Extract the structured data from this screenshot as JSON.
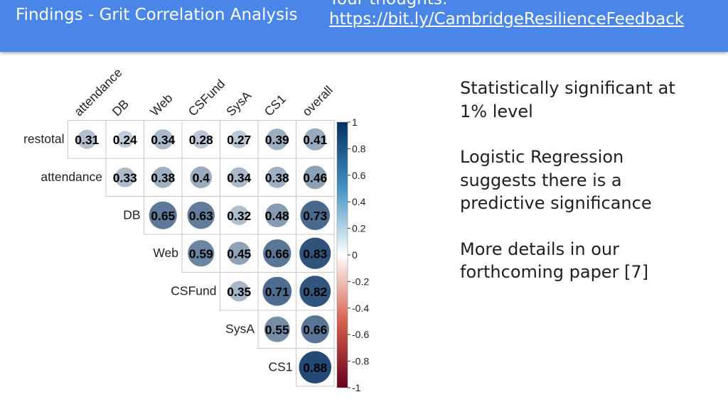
{
  "header": {
    "title": "Findings - Grit Correlation Analysis",
    "thoughts_label": "Your thoughts:",
    "feedback_link": "https://bit.ly/CambridgeResilienceFeedback"
  },
  "notes": [
    "Statistically significant at 1% level",
    "Logistic Regression suggests there is a predictive significance",
    "More details in our forthcoming paper [7]"
  ],
  "chart_data": {
    "type": "heatmap",
    "row_labels": [
      "restotal",
      "attendance",
      "DB",
      "Web",
      "CSFund",
      "SysA",
      "CS1"
    ],
    "col_labels": [
      "attendance",
      "DB",
      "Web",
      "CSFund",
      "SysA",
      "CS1",
      "overall"
    ],
    "values": [
      [
        0.31,
        0.24,
        0.34,
        0.28,
        0.27,
        0.39,
        0.41
      ],
      [
        null,
        0.33,
        0.38,
        0.4,
        0.34,
        0.38,
        0.46
      ],
      [
        null,
        null,
        0.65,
        0.63,
        0.32,
        0.48,
        0.73
      ],
      [
        null,
        null,
        null,
        0.59,
        0.45,
        0.66,
        0.83
      ],
      [
        null,
        null,
        null,
        null,
        0.35,
        0.71,
        0.82
      ],
      [
        null,
        null,
        null,
        null,
        null,
        0.55,
        0.66
      ],
      [
        null,
        null,
        null,
        null,
        null,
        null,
        0.88
      ]
    ],
    "value_labels": [
      [
        "0.31",
        "0.24",
        "0.34",
        "0.28",
        "0.27",
        "0.39",
        "0.41"
      ],
      [
        "",
        "0.33",
        "0.38",
        "0.4",
        "0.34",
        "0.38",
        "0.46"
      ],
      [
        "",
        "",
        "0.65",
        "0.63",
        "0.32",
        "0.48",
        "0.73"
      ],
      [
        "",
        "",
        "",
        "0.59",
        "0.45",
        "0.66",
        "0.83"
      ],
      [
        "",
        "",
        "",
        "",
        "0.35",
        "0.71",
        "0.82"
      ],
      [
        "",
        "",
        "",
        "",
        "",
        "0.55",
        "0.66"
      ],
      [
        "",
        "",
        "",
        "",
        "",
        "",
        "0.88"
      ]
    ],
    "colorbar": {
      "range": [
        -1,
        1
      ],
      "ticks": [
        1,
        0.8,
        0.6,
        0.4,
        0.2,
        0,
        -0.2,
        -0.4,
        -0.6,
        -0.8,
        -1
      ],
      "tick_labels": [
        "1",
        "0.8",
        "0.6",
        "0.4",
        "0.2",
        "0",
        "-0.2",
        "-0.4",
        "-0.6",
        "-0.8",
        "-1"
      ],
      "colors": {
        "negative": "#67001f",
        "zero": "#ffffff",
        "positive": "#053061"
      }
    }
  }
}
